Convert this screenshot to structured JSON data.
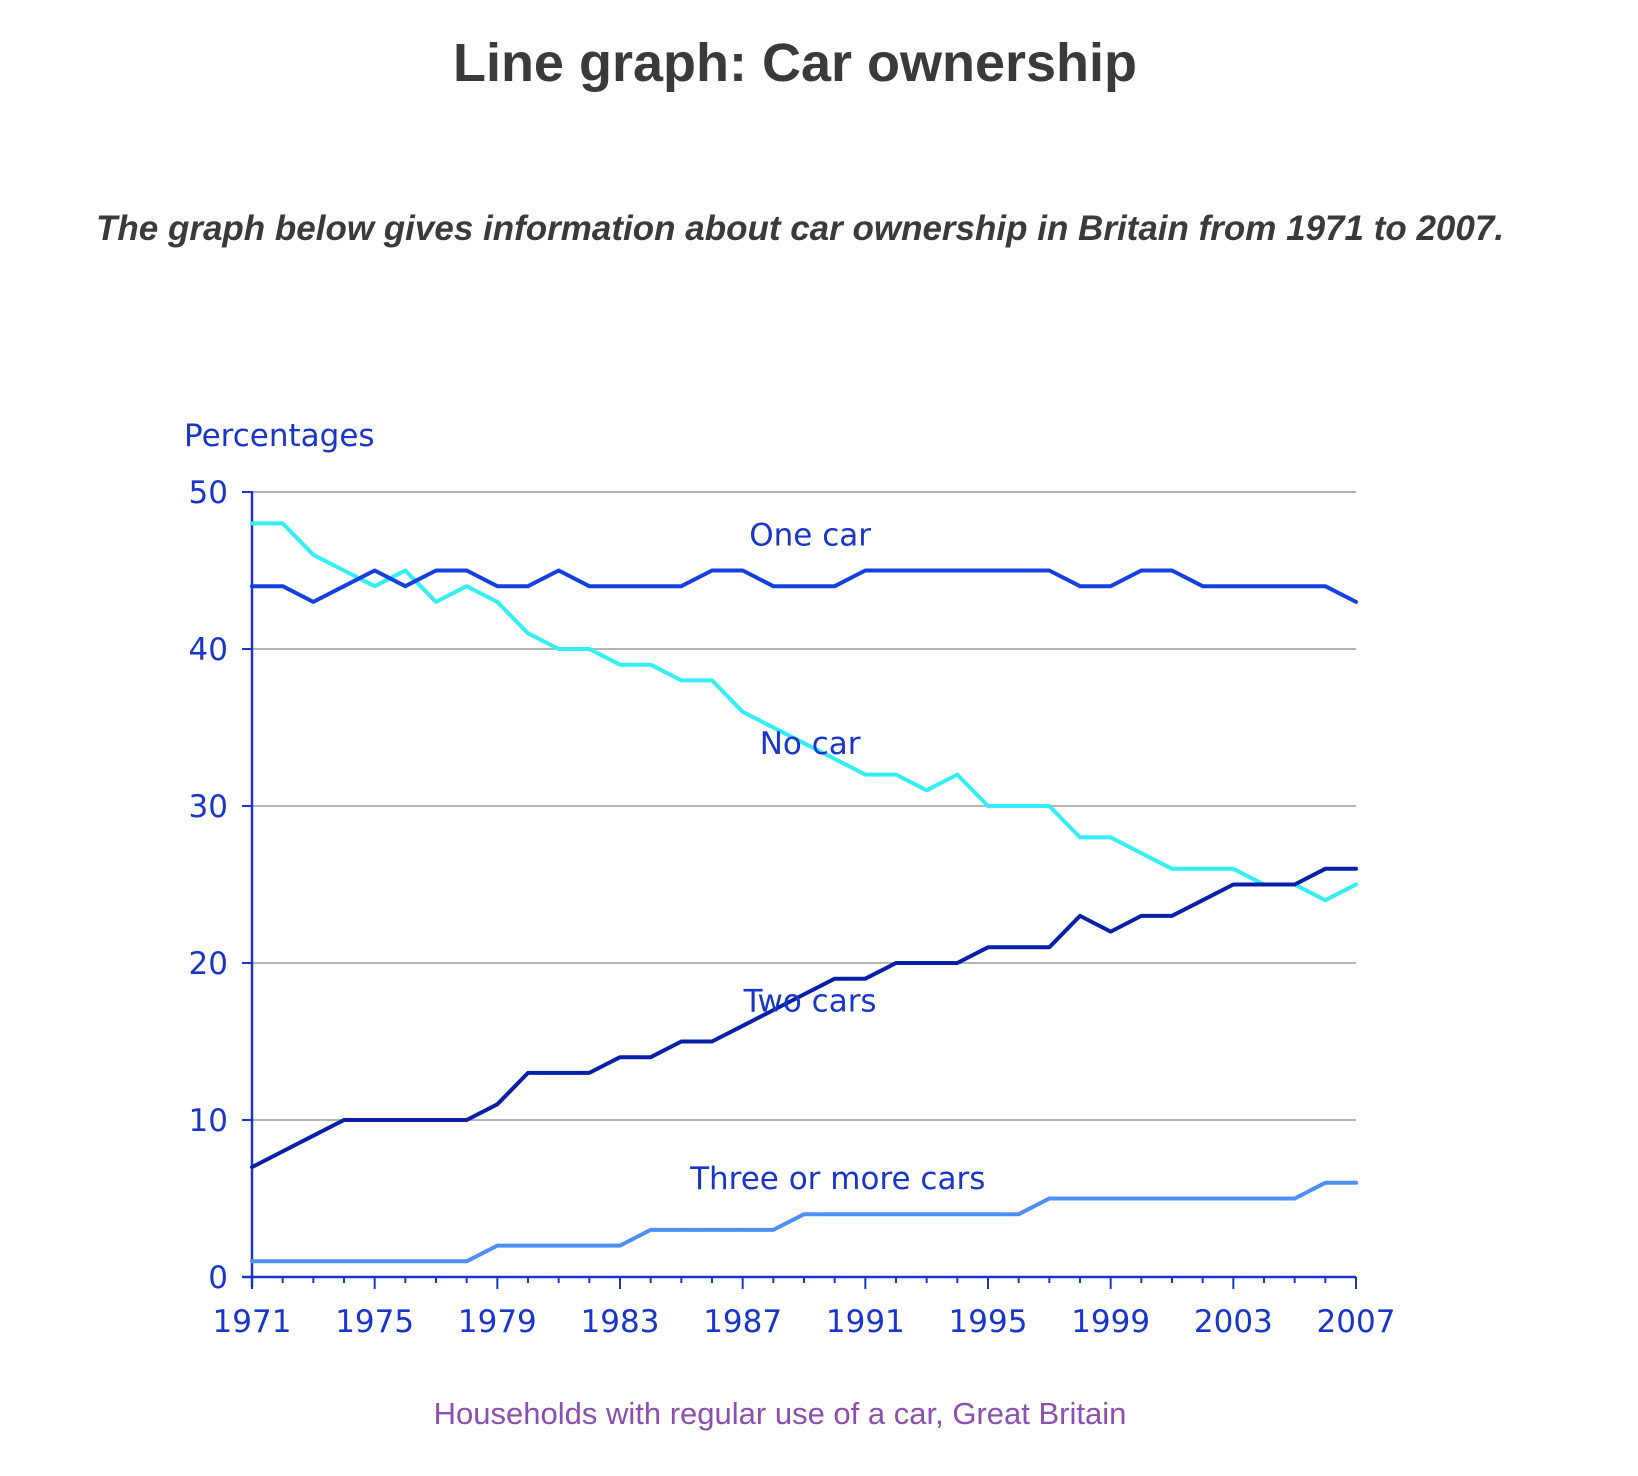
{
  "page": {
    "title": "Line graph: Car ownership",
    "intro": "The graph below gives information about car ownership in Britain from 1971 to 2007."
  },
  "chart_data": {
    "type": "line",
    "title": "",
    "ylabel": "Percentages",
    "xlabel": "",
    "caption": "Households with regular use of a car, Great Britain",
    "ylim": [
      0,
      50
    ],
    "yticks": [
      0,
      10,
      20,
      30,
      40,
      50
    ],
    "xticks": [
      1971,
      1975,
      1979,
      1983,
      1987,
      1991,
      1995,
      1999,
      2003,
      2007
    ],
    "grid": "horizontal",
    "x": [
      1971,
      1972,
      1973,
      1974,
      1975,
      1976,
      1977,
      1978,
      1979,
      1980,
      1981,
      1982,
      1983,
      1984,
      1985,
      1986,
      1987,
      1988,
      1989,
      1990,
      1991,
      1992,
      1993,
      1994,
      1995,
      1996,
      1997,
      1998,
      1999,
      2000,
      2001,
      2002,
      2003,
      2004,
      2005,
      2006,
      2007
    ],
    "series": [
      {
        "name": "One car",
        "color": "#1540e0",
        "values": [
          44,
          44,
          43,
          44,
          45,
          44,
          45,
          45,
          44,
          44,
          45,
          44,
          44,
          44,
          44,
          45,
          45,
          44,
          44,
          44,
          45,
          45,
          45,
          45,
          45,
          45,
          45,
          44,
          44,
          45,
          45,
          44,
          44,
          44,
          44,
          44,
          43
        ]
      },
      {
        "name": "No car",
        "color": "#33eef2",
        "values": [
          48,
          48,
          46,
          45,
          44,
          45,
          43,
          44,
          43,
          41,
          40,
          40,
          39,
          39,
          38,
          38,
          36,
          35,
          34,
          33,
          32,
          32,
          31,
          32,
          30,
          30,
          30,
          28,
          28,
          27,
          26,
          26,
          26,
          25,
          25,
          24,
          25
        ]
      },
      {
        "name": "Two cars",
        "color": "#0a1fa8",
        "values": [
          7,
          8,
          9,
          10,
          10,
          10,
          10,
          10,
          11,
          13,
          13,
          13,
          14,
          14,
          15,
          15,
          16,
          17,
          18,
          19,
          19,
          20,
          20,
          20,
          21,
          21,
          21,
          23,
          22,
          23,
          23,
          24,
          25,
          25,
          25,
          26,
          26
        ]
      },
      {
        "name": "Three or more cars",
        "color": "#4d8ff5",
        "values": [
          1,
          1,
          1,
          1,
          1,
          1,
          1,
          1,
          2,
          2,
          2,
          2,
          2,
          3,
          3,
          3,
          3,
          3,
          4,
          4,
          4,
          4,
          4,
          4,
          4,
          4,
          5,
          5,
          5,
          5,
          5,
          5,
          5,
          5,
          5,
          6,
          6
        ]
      }
    ],
    "colors": {
      "axis": "#1a35c9",
      "grid": "#b4b4b4",
      "label": "#1a35c9"
    }
  }
}
